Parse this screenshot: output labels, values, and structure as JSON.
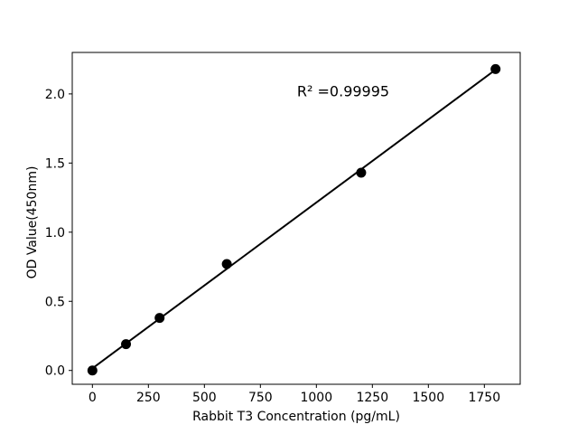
{
  "chart_data": {
    "type": "scatter",
    "title": "",
    "xlabel": "Rabbit T3 Concentration (pg/mL)",
    "ylabel": "OD Value(450nm)",
    "x": [
      0,
      150,
      300,
      600,
      1200,
      1800
    ],
    "y": [
      0.0,
      0.19,
      0.38,
      0.77,
      1.43,
      2.18
    ],
    "fit_line": {
      "x": [
        0,
        1800
      ],
      "y": [
        0.015,
        2.175
      ]
    },
    "annotation": {
      "text": "R² =0.99995",
      "at_x": 1120,
      "at_y": 2.02
    },
    "xlim": [
      -90,
      1910
    ],
    "ylim": [
      -0.1,
      2.3
    ],
    "xticks": [
      0,
      250,
      500,
      750,
      1000,
      1250,
      1500,
      1750
    ],
    "xtick_labels": [
      "0",
      "250",
      "500",
      "750",
      "1000",
      "1250",
      "1500",
      "1750"
    ],
    "yticks": [
      0.0,
      0.5,
      1.0,
      1.5,
      2.0
    ],
    "ytick_labels": [
      "0.0",
      "0.5",
      "1.0",
      "1.5",
      "2.0"
    ],
    "grid": false,
    "legend": null,
    "marker_color": "#000000",
    "line_color": "#000000",
    "axis_color": "#000000",
    "background": "#ffffff"
  }
}
